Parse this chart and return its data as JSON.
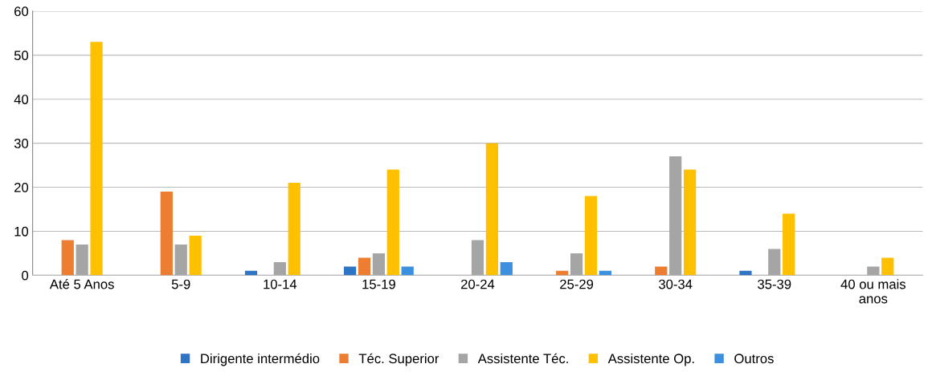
{
  "chart_data": {
    "type": "bar",
    "categories": [
      "Até 5 Anos",
      "5-9",
      "10-14",
      "15-19",
      "20-24",
      "25-29",
      "30-34",
      "35-39",
      "40 ou mais\nanos"
    ],
    "series": [
      {
        "name": "Dirigente intermédio",
        "color": "#2e75c6",
        "values": [
          0,
          0,
          1,
          2,
          0,
          0,
          0,
          1,
          0
        ]
      },
      {
        "name": "Téc. Superior",
        "color": "#ed7d31",
        "values": [
          8,
          19,
          0,
          4,
          0,
          1,
          2,
          0,
          0
        ]
      },
      {
        "name": "Assistente Téc.",
        "color": "#a5a5a5",
        "values": [
          7,
          7,
          3,
          5,
          8,
          5,
          27,
          6,
          2
        ]
      },
      {
        "name": "Assistente Op.",
        "color": "#ffc000",
        "values": [
          53,
          9,
          21,
          24,
          30,
          18,
          24,
          14,
          4
        ]
      },
      {
        "name": "Outros",
        "color": "#3d8fe0",
        "values": [
          0,
          0,
          0,
          2,
          3,
          1,
          0,
          0,
          0
        ]
      }
    ],
    "ylim": [
      0,
      60
    ],
    "yticks": [
      0,
      10,
      20,
      30,
      40,
      50,
      60
    ],
    "grid": "y",
    "legend": "bottom"
  }
}
